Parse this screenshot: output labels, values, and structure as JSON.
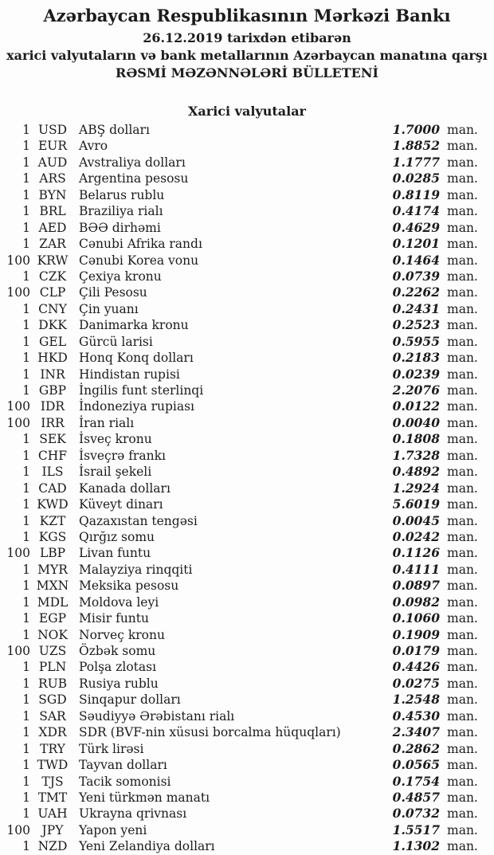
{
  "document": {
    "title": "Azərbaycan Respublikasının Mərkəzi Bankı",
    "date_line": "26.12.2019 tarixdən etibarən",
    "subtitle": "xarici valyutaların və bank metallarının Azərbaycan manatına qarşı",
    "bulletin_title": "RƏSMİ MƏZƏNNƏLƏRİ BÜLLETENİ",
    "section_title": "Xarici valyutalar",
    "colors": {
      "text": "#1c1c1c",
      "background": "#fdfdfd"
    }
  },
  "rates": [
    {
      "qty": "1",
      "code": "USD",
      "name": "ABŞ dolları",
      "rate": "1.7000",
      "unit": "man."
    },
    {
      "qty": "1",
      "code": "EUR",
      "name": "Avro",
      "rate": "1.8852",
      "unit": "man."
    },
    {
      "qty": "1",
      "code": "AUD",
      "name": "Avstraliya dolları",
      "rate": "1.1777",
      "unit": "man."
    },
    {
      "qty": "1",
      "code": "ARS",
      "name": "Argentina pesosu",
      "rate": "0.0285",
      "unit": "man."
    },
    {
      "qty": "1",
      "code": "BYN",
      "name": "Belarus rublu",
      "rate": "0.8119",
      "unit": "man."
    },
    {
      "qty": "1",
      "code": "BRL",
      "name": "Braziliya rialı",
      "rate": "0.4174",
      "unit": "man."
    },
    {
      "qty": "1",
      "code": "AED",
      "name": "BƏƏ dirhəmi",
      "rate": "0.4629",
      "unit": "man."
    },
    {
      "qty": "1",
      "code": "ZAR",
      "name": "Cənubi Afrika randı",
      "rate": "0.1201",
      "unit": "man."
    },
    {
      "qty": "100",
      "code": "KRW",
      "name": "Cənubi Korea vonu",
      "rate": "0.1464",
      "unit": "man."
    },
    {
      "qty": "1",
      "code": "CZK",
      "name": "Çexiya kronu",
      "rate": "0.0739",
      "unit": "man."
    },
    {
      "qty": "100",
      "code": "CLP",
      "name": "Çili Pesosu",
      "rate": "0.2262",
      "unit": "man."
    },
    {
      "qty": "1",
      "code": "CNY",
      "name": "Çin yuanı",
      "rate": "0.2431",
      "unit": "man."
    },
    {
      "qty": "1",
      "code": "DKK",
      "name": "Danimarka kronu",
      "rate": "0.2523",
      "unit": "man."
    },
    {
      "qty": "1",
      "code": "GEL",
      "name": "Gürcü larisi",
      "rate": "0.5955",
      "unit": "man."
    },
    {
      "qty": "1",
      "code": "HKD",
      "name": "Honq Konq dolları",
      "rate": "0.2183",
      "unit": "man."
    },
    {
      "qty": "1",
      "code": "INR",
      "name": "Hindistan rupisi",
      "rate": "0.0239",
      "unit": "man."
    },
    {
      "qty": "1",
      "code": "GBP",
      "name": "İngilis funt sterlinqi",
      "rate": "2.2076",
      "unit": "man."
    },
    {
      "qty": "100",
      "code": "IDR",
      "name": "İndoneziya rupiası",
      "rate": "0.0122",
      "unit": "man."
    },
    {
      "qty": "100",
      "code": "IRR",
      "name": "İran rialı",
      "rate": "0.0040",
      "unit": "man."
    },
    {
      "qty": "1",
      "code": "SEK",
      "name": "İsveç kronu",
      "rate": "0.1808",
      "unit": "man."
    },
    {
      "qty": "1",
      "code": "CHF",
      "name": "İsveçrə frankı",
      "rate": "1.7328",
      "unit": "man."
    },
    {
      "qty": "1",
      "code": "ILS",
      "name": "İsrail şekeli",
      "rate": "0.4892",
      "unit": "man."
    },
    {
      "qty": "1",
      "code": "CAD",
      "name": "Kanada dolları",
      "rate": "1.2924",
      "unit": "man."
    },
    {
      "qty": "1",
      "code": "KWD",
      "name": "Küveyt dinarı",
      "rate": "5.6019",
      "unit": "man."
    },
    {
      "qty": "1",
      "code": "KZT",
      "name": "Qazaxıstan tengəsi",
      "rate": "0.0045",
      "unit": "man."
    },
    {
      "qty": "1",
      "code": "KGS",
      "name": "Qırğız somu",
      "rate": "0.0242",
      "unit": "man."
    },
    {
      "qty": "100",
      "code": "LBP",
      "name": "Livan funtu",
      "rate": "0.1126",
      "unit": "man."
    },
    {
      "qty": "1",
      "code": "MYR",
      "name": "Malayziya rinqqiti",
      "rate": "0.4111",
      "unit": "man."
    },
    {
      "qty": "1",
      "code": "MXN",
      "name": "Meksika pesosu",
      "rate": "0.0897",
      "unit": "man."
    },
    {
      "qty": "1",
      "code": "MDL",
      "name": "Moldova leyi",
      "rate": "0.0982",
      "unit": "man."
    },
    {
      "qty": "1",
      "code": "EGP",
      "name": "Misir funtu",
      "rate": "0.1060",
      "unit": "man."
    },
    {
      "qty": "1",
      "code": "NOK",
      "name": "Norveç kronu",
      "rate": "0.1909",
      "unit": "man."
    },
    {
      "qty": "100",
      "code": "UZS",
      "name": "Özbək somu",
      "rate": "0.0179",
      "unit": "man."
    },
    {
      "qty": "1",
      "code": "PLN",
      "name": "Polşa zlotası",
      "rate": "0.4426",
      "unit": "man."
    },
    {
      "qty": "1",
      "code": "RUB",
      "name": "Rusiya rublu",
      "rate": "0.0275",
      "unit": "man."
    },
    {
      "qty": "1",
      "code": "SGD",
      "name": "Sinqapur dolları",
      "rate": "1.2548",
      "unit": "man."
    },
    {
      "qty": "1",
      "code": "SAR",
      "name": "Səudiyyə Ərəbistanı rialı",
      "rate": "0.4530",
      "unit": "man."
    },
    {
      "qty": "1",
      "code": "XDR",
      "name": "SDR (BVF-nin xüsusi borcalma hüquqları)",
      "rate": "2.3407",
      "unit": "man."
    },
    {
      "qty": "1",
      "code": "TRY",
      "name": "Türk lirəsi",
      "rate": "0.2862",
      "unit": "man."
    },
    {
      "qty": "1",
      "code": "TWD",
      "name": "Tayvan dolları",
      "rate": "0.0565",
      "unit": "man."
    },
    {
      "qty": "1",
      "code": "TJS",
      "name": "Tacik somonisi",
      "rate": "0.1754",
      "unit": "man."
    },
    {
      "qty": "1",
      "code": "TMT",
      "name": "Yeni türkmən manatı",
      "rate": "0.4857",
      "unit": "man."
    },
    {
      "qty": "1",
      "code": "UAH",
      "name": "Ukrayna qrivnası",
      "rate": "0.0732",
      "unit": "man."
    },
    {
      "qty": "100",
      "code": "JPY",
      "name": "Yapon yeni",
      "rate": "1.5517",
      "unit": "man."
    },
    {
      "qty": "1",
      "code": "NZD",
      "name": "Yeni Zelandiya dolları",
      "rate": "1.1302",
      "unit": "man."
    }
  ]
}
